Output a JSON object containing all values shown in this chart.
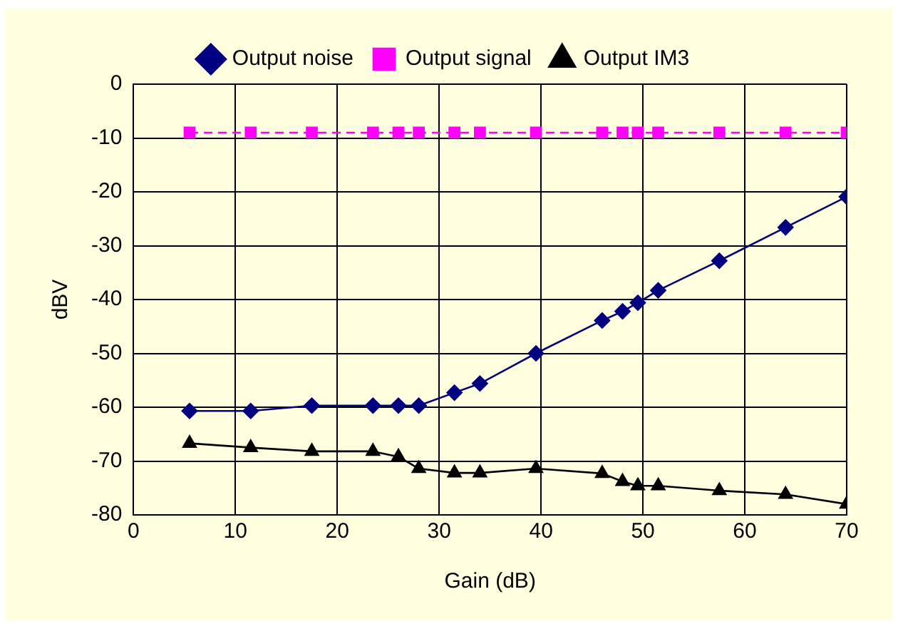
{
  "chart_data": {
    "type": "line",
    "xlabel": "Gain (dB)",
    "ylabel": "dBV",
    "x": [
      5.5,
      11.5,
      17.5,
      23.5,
      26,
      28,
      31.5,
      34,
      39.5,
      46,
      48,
      49.5,
      51.5,
      57.5,
      64,
      70
    ],
    "series": [
      {
        "name": "Output noise",
        "color": "#000080",
        "marker": "diamond",
        "line_style": "solid",
        "values": [
          -60.7,
          -60.7,
          -59.7,
          -59.7,
          -59.7,
          -59.7,
          -57.3,
          -55.6,
          -50,
          -43.9,
          -42.2,
          -40.6,
          -38.3,
          -32.8,
          -26.6,
          -20.9
        ]
      },
      {
        "name": "Output signal",
        "color": "#ff00ff",
        "marker": "square",
        "line_style": "dashed",
        "values": [
          -9,
          -9,
          -9,
          -9,
          -9,
          -9,
          -9,
          -9,
          -9,
          -9,
          -9,
          -9,
          -9,
          -9,
          -9,
          -9
        ]
      },
      {
        "name": "Output IM3",
        "color": "#000000",
        "marker": "triangle",
        "line_style": "solid",
        "values": [
          -66.7,
          -67.5,
          -68.2,
          -68.2,
          -69.2,
          -71.4,
          -72.2,
          -72.2,
          -71.4,
          -72.3,
          -73.8,
          -74.6,
          -74.6,
          -75.5,
          -76.2,
          -78
        ]
      }
    ],
    "xlim": [
      0,
      70
    ],
    "xticks": [
      0,
      10,
      20,
      30,
      40,
      50,
      60,
      70
    ],
    "ylim": [
      -80,
      0
    ],
    "yticks": [
      0,
      -10,
      -20,
      -30,
      -40,
      -50,
      -60,
      -70,
      -80
    ],
    "grid": true,
    "legend": "top"
  }
}
